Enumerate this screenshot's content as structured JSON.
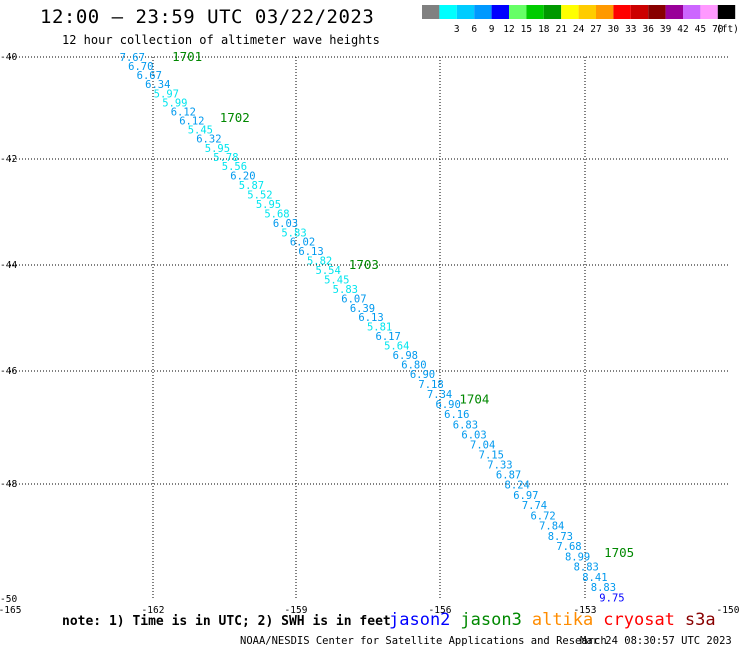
{
  "title": "12:00 – 23:59 UTC 03/22/2023",
  "subtitle": "12 hour collection of altimeter wave heights",
  "note": "note: 1) Time is in UTC; 2) SWH is in feet",
  "credit": "NOAA/NESDIS Center for Satellite Applications and Research",
  "generated": "Mar 24 08:30:57 UTC 2023",
  "satellites": [
    {
      "name": "jason2",
      "color": "#0000ff"
    },
    {
      "name": "jason3",
      "color": "#008800"
    },
    {
      "name": "altika",
      "color": "#ff8c00"
    },
    {
      "name": "cryosat",
      "color": "#ff0000"
    },
    {
      "name": "s3a",
      "color": "#880000"
    }
  ],
  "scale": {
    "unit": "(ft)",
    "bins": [
      {
        "color": "#808080",
        "label": ""
      },
      {
        "color": "#00ffff",
        "label": "3"
      },
      {
        "color": "#00ccff",
        "label": "6"
      },
      {
        "color": "#0099ff",
        "label": "9"
      },
      {
        "color": "#0000ff",
        "label": "12"
      },
      {
        "color": "#66ff66",
        "label": "15"
      },
      {
        "color": "#00cc00",
        "label": "18"
      },
      {
        "color": "#009900",
        "label": "21"
      },
      {
        "color": "#ffff00",
        "label": "24"
      },
      {
        "color": "#ffcc00",
        "label": "27"
      },
      {
        "color": "#ff9900",
        "label": "30"
      },
      {
        "color": "#ff0000",
        "label": "33"
      },
      {
        "color": "#cc0000",
        "label": "36"
      },
      {
        "color": "#880000",
        "label": "39"
      },
      {
        "color": "#990099",
        "label": "42"
      },
      {
        "color": "#cc66ff",
        "label": "45"
      },
      {
        "color": "#ff99ff",
        "label": "70"
      },
      {
        "color": "#000000",
        "label": ""
      }
    ]
  },
  "chart_data": {
    "type": "scatter",
    "title": "12:00 – 23:59 UTC 03/22/2023",
    "subtitle": "12 hour collection of altimeter wave heights",
    "xlim": [
      -165,
      -150
    ],
    "ylim": [
      -50,
      -40
    ],
    "x_ticks": [
      "-165",
      "-162",
      "-159",
      "-156",
      "-153",
      "-150"
    ],
    "y_ticks": [
      "-40",
      "-42",
      "-44",
      "-46",
      "-48",
      "-50"
    ],
    "grid": true,
    "satellite": "jason3",
    "time_labels": [
      {
        "text": "1701",
        "lon": -161.6,
        "lat": -40.0
      },
      {
        "text": "1702",
        "lon": -160.6,
        "lat": -41.2
      },
      {
        "text": "1703",
        "lon": -157.9,
        "lat": -44.0
      },
      {
        "text": "1704",
        "lon": -155.6,
        "lat": -46.5
      },
      {
        "text": "1705",
        "lon": -152.6,
        "lat": -49.2
      }
    ],
    "track": {
      "lon_start": -162.7,
      "lat_start": -40.0,
      "lon_end": -152.7,
      "lat_end": -49.97
    },
    "swh_ft": [
      "7.67",
      "6.70",
      "6.67",
      "6.34",
      "5.97",
      "5.99",
      "6.12",
      "6.12",
      "5.45",
      "6.32",
      "5.95",
      "5.78",
      "5.56",
      "6.20",
      "5.87",
      "5.52",
      "5.95",
      "5.68",
      "6.03",
      "5.83",
      "6.02",
      "6.13",
      "5.82",
      "5.54",
      "5.45",
      "5.83",
      "6.07",
      "6.39",
      "6.13",
      "5.81",
      "6.17",
      "5.64",
      "6.98",
      "6.80",
      "6.90",
      "7.18",
      "7.34",
      "6.90",
      "6.16",
      "6.83",
      "6.03",
      "7.04",
      "7.15",
      "7.33",
      "6.87",
      "8.24",
      "6.97",
      "7.74",
      "6.72",
      "7.84",
      "8.73",
      "7.68",
      "8.99",
      "8.83",
      "8.41",
      "8.83",
      "9.75"
    ]
  }
}
